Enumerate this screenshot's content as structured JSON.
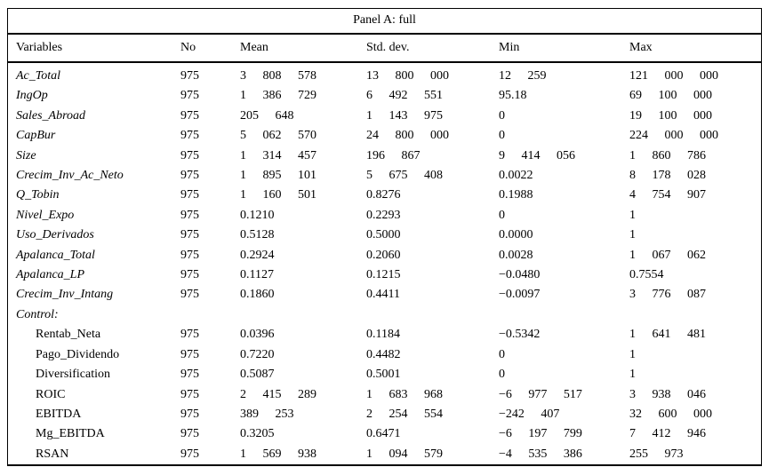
{
  "panel": {
    "title": "Panel A: full"
  },
  "table": {
    "columns": [
      "Variables",
      "No",
      "Mean",
      "Std. dev.",
      "Min",
      "Max"
    ],
    "rows": [
      {
        "variable": "Ac_Total",
        "italic": true,
        "indent": false,
        "no": "975",
        "mean": "3 808 578",
        "std": "13 800 000",
        "min": "12 259",
        "max": "121 000 000"
      },
      {
        "variable": "IngOp",
        "italic": true,
        "indent": false,
        "no": "975",
        "mean": "1 386 729",
        "std": "6 492 551",
        "min": "95.18",
        "max": "69 100 000"
      },
      {
        "variable": "Sales_Abroad",
        "italic": true,
        "indent": false,
        "no": "975",
        "mean": "205 648",
        "std": "1 143 975",
        "min": "0",
        "max": "19 100 000"
      },
      {
        "variable": "CapBur",
        "italic": true,
        "indent": false,
        "no": "975",
        "mean": "5 062 570",
        "std": "24 800 000",
        "min": "0",
        "max": "224 000 000"
      },
      {
        "variable": "Size",
        "italic": true,
        "indent": false,
        "no": "975",
        "mean": "1 314 457",
        "std": "196 867",
        "min": "9 414 056",
        "max": "1 860 786"
      },
      {
        "variable": "Crecim_Inv_Ac_Neto",
        "italic": true,
        "indent": false,
        "no": "975",
        "mean": "1 895 101",
        "std": "5 675 408",
        "min": "0.0022",
        "max": "8 178 028"
      },
      {
        "variable": "Q_Tobin",
        "italic": true,
        "indent": false,
        "no": "975",
        "mean": "1 160 501",
        "std": "0.8276",
        "min": "0.1988",
        "max": "4 754 907"
      },
      {
        "variable": "Nivel_Expo",
        "italic": true,
        "indent": false,
        "no": "975",
        "mean": "0.1210",
        "std": "0.2293",
        "min": "0",
        "max": "1"
      },
      {
        "variable": "Uso_Derivados",
        "italic": true,
        "indent": false,
        "no": "975",
        "mean": "0.5128",
        "std": "0.5000",
        "min": "0.0000",
        "max": "1"
      },
      {
        "variable": "Apalanca_Total",
        "italic": true,
        "indent": false,
        "no": "975",
        "mean": "0.2924",
        "std": "0.2060",
        "min": "0.0028",
        "max": "1 067 062"
      },
      {
        "variable": "Apalanca_LP",
        "italic": true,
        "indent": false,
        "no": "975",
        "mean": "0.1127",
        "std": "0.1215",
        "min": "−0.0480",
        "max": "0.7554"
      },
      {
        "variable": "Crecim_Inv_Intang",
        "italic": true,
        "indent": false,
        "no": "975",
        "mean": "0.1860",
        "std": "0.4411",
        "min": "−0.0097",
        "max": "3 776 087"
      },
      {
        "variable": "Control:",
        "italic": true,
        "indent": false,
        "no": "",
        "mean": "",
        "std": "",
        "min": "",
        "max": ""
      },
      {
        "variable": "Rentab_Neta",
        "italic": false,
        "indent": true,
        "no": "975",
        "mean": "0.0396",
        "std": "0.1184",
        "min": "−0.5342",
        "max": "1 641 481"
      },
      {
        "variable": "Pago_Dividendo",
        "italic": false,
        "indent": true,
        "no": "975",
        "mean": "0.7220",
        "std": "0.4482",
        "min": "0",
        "max": "1"
      },
      {
        "variable": "Diversification",
        "italic": false,
        "indent": true,
        "no": "975",
        "mean": "0.5087",
        "std": "0.5001",
        "min": "0",
        "max": "1"
      },
      {
        "variable": "ROIC",
        "italic": false,
        "indent": true,
        "no": "975",
        "mean": "2 415 289",
        "std": "1 683 968",
        "min": "−6 977 517",
        "max": "3 938 046"
      },
      {
        "variable": "EBITDA",
        "italic": false,
        "indent": true,
        "no": "975",
        "mean": "389 253",
        "std": "2 254 554",
        "min": "−242 407",
        "max": "32 600 000"
      },
      {
        "variable": "Mg_EBITDA",
        "italic": false,
        "indent": true,
        "no": "975",
        "mean": "0.3205",
        "std": "0.6471",
        "min": "−6 197 799",
        "max": "7 412 946"
      },
      {
        "variable": "RSAN",
        "italic": false,
        "indent": true,
        "no": "975",
        "mean": "1 569 938",
        "std": "1 094 579",
        "min": "−4 535 386",
        "max": "255 973"
      }
    ]
  },
  "style": {
    "text_color": "#000000",
    "background": "#ffffff",
    "rule_color": "#000000"
  }
}
